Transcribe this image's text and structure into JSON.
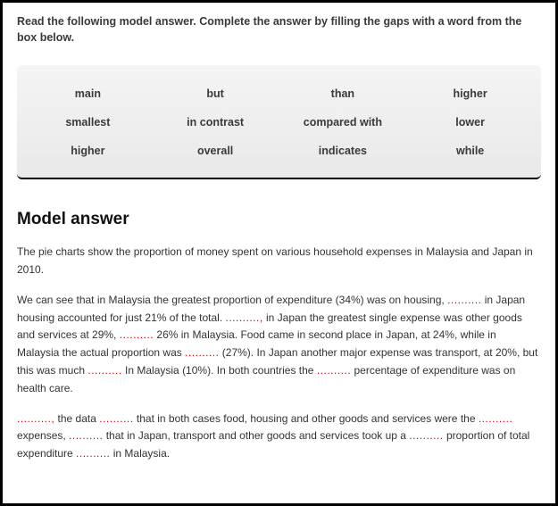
{
  "instructions": "Read the following model answer. Complete the answer by filling the gaps with a word from the box below.",
  "wordbox": {
    "rows": [
      [
        "main",
        "but",
        "than",
        "higher"
      ],
      [
        "smallest",
        "in contrast",
        "compared with",
        "lower"
      ],
      [
        "higher",
        "overall",
        "indicates",
        "while"
      ]
    ]
  },
  "model_title": "Model answer",
  "gap": "..........",
  "gap_short": "..........,",
  "p1": "The pie charts show the proportion of money spent on various household expenses in Malaysia and Japan in 2010.",
  "p2a": "We can see that in Malaysia the greatest proportion of expenditure (34%) was on housing, ",
  "p2b": " in Japan housing accounted for just 21% of the total. ",
  "p2c": " in Japan the greatest single expense was other goods and services at 29%, ",
  "p2d": " 26% in Malaysia. Food came in second place in Japan, at 24%, while in Malaysia the actual proportion was ",
  "p2e": " (27%). In Japan another major expense was transport, at 20%, but this was much ",
  "p2f": " In Malaysia (10%). In both countries the ",
  "p2g": " percentage of expenditure was on health care.",
  "p3b": " the data ",
  "p3c": " that in both cases food, housing and other goods and services were the ",
  "p3d": " expenses, ",
  "p3e": " that in Japan, transport and other goods and services took up a ",
  "p3f": " proportion of total expenditure ",
  "p3g": " in Malaysia.",
  "style": {
    "border_color": "#000000",
    "bg": "#ffffff",
    "text_color": "#333333",
    "gap_color": "#cc0000",
    "wordbox_bg_top": "#f4f4f4",
    "wordbox_bg_bottom": "#e9e9e9",
    "instruction_fontsize": 12.5,
    "body_fontsize": 12,
    "title_fontsize": 19
  }
}
